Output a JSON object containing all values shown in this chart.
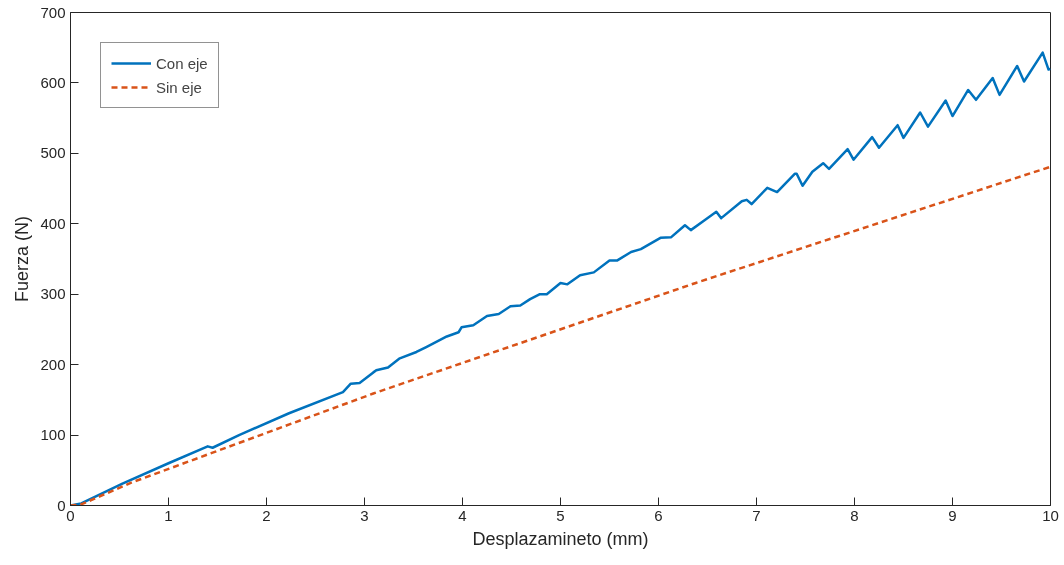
{
  "chart_data": {
    "type": "line",
    "xlabel": "Desplazamineto (mm)",
    "ylabel": "Fuerza (N)",
    "xlim": [
      0,
      10
    ],
    "ylim": [
      0,
      700
    ],
    "xticks": [
      0,
      1,
      2,
      3,
      4,
      5,
      6,
      7,
      8,
      9,
      10
    ],
    "yticks": [
      0,
      100,
      200,
      300,
      400,
      500,
      600,
      700
    ],
    "grid": false,
    "legend": "top left",
    "marker": "none",
    "series": [
      {
        "name": "Con eje",
        "color": "#0072bd",
        "line_style": "solid",
        "x": [
          0,
          0.11,
          0.53,
          1.0,
          1.4,
          1.45,
          1.72,
          2.23,
          2.78,
          2.86,
          2.95,
          3.09,
          3.12,
          3.24,
          3.36,
          3.53,
          3.63,
          3.84,
          3.96,
          3.99,
          4.11,
          4.25,
          4.37,
          4.49,
          4.59,
          4.69,
          4.79,
          4.86,
          5.0,
          5.07,
          5.2,
          5.34,
          5.5,
          5.58,
          5.72,
          5.82,
          6.02,
          6.13,
          6.27,
          6.33,
          6.47,
          6.59,
          6.64,
          6.85,
          6.9,
          6.95,
          7.11,
          7.21,
          7.39,
          7.41,
          7.47,
          7.57,
          7.68,
          7.74,
          7.93,
          7.99,
          8.18,
          8.25,
          8.44,
          8.5,
          8.67,
          8.75,
          8.93,
          9.0,
          9.16,
          9.24,
          9.41,
          9.48,
          9.66,
          9.73,
          9.92,
          9.98,
          10.0
        ],
        "values": [
          0,
          3,
          31,
          60,
          84,
          82,
          100,
          131,
          161,
          173,
          174,
          189,
          192,
          196,
          209,
          218,
          225,
          240,
          246,
          253,
          256,
          269,
          272,
          283,
          284,
          293,
          300,
          300,
          316,
          314,
          327,
          331,
          348,
          348,
          360,
          364,
          380,
          381,
          398,
          391,
          405,
          417,
          408,
          432,
          434,
          428,
          451,
          445,
          471,
          471,
          454,
          474,
          486,
          478,
          506,
          491,
          523,
          508,
          540,
          522,
          558,
          538,
          575,
          553,
          590,
          576,
          607,
          583,
          624,
          602,
          643,
          619,
          620
        ]
      },
      {
        "name": "Sin eje",
        "color": "#d95319",
        "line_style": "dashed",
        "x": [
          0,
          0.1,
          0.63,
          1.45,
          3.09,
          6.38,
          10.0
        ],
        "values": [
          0,
          1,
          33,
          75,
          159,
          316,
          481
        ]
      }
    ]
  }
}
